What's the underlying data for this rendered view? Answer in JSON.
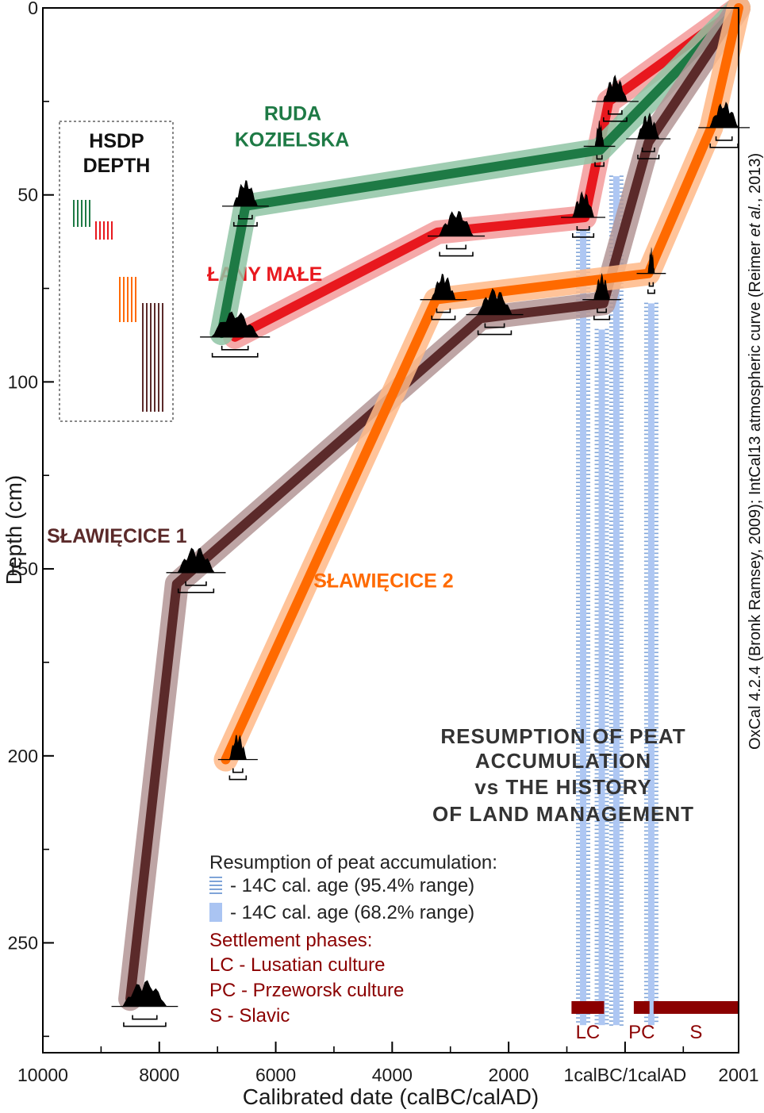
{
  "chart_data": {
    "type": "line",
    "xlabel": "Calibrated date (calBC/calAD)",
    "ylabel": "Depth (cm)",
    "x_ticks": [
      {
        "x": -8000,
        "label": "10000"
      },
      {
        "x": -6000,
        "label": "8000"
      },
      {
        "x": -4000,
        "label": "6000"
      },
      {
        "x": -2000,
        "label": "4000"
      },
      {
        "x": 0,
        "label": "2000"
      },
      {
        "x": 2000,
        "label": "1calBC/1calAD"
      },
      {
        "x": 3950,
        "label": "2001"
      }
    ],
    "y_ticks": [
      0,
      50,
      100,
      150,
      200,
      250
    ],
    "xlim": [
      -8000,
      3950
    ],
    "ylim": [
      0,
      279
    ],
    "side_note_parts": [
      "OxCal 4.2.4 (Bronk Ramsey, 2009); IntCal13 atmospheric curve (Reimer ",
      "et al.",
      ", 2013)"
    ],
    "hsdp": {
      "line1": "HSDP",
      "line2": "DEPTH"
    },
    "res_title": [
      "RESUMPTION OF PEAT",
      "ACCUMULATION",
      "vs THE HISTORY",
      "OF LAND MANAGEMENT"
    ],
    "legend": {
      "heading": "Resumption of peat accumulation:",
      "item95": "- 14C cal. age (95.4% range)",
      "item68": "- 14C cal. age (68.2% range)",
      "settlement_head": "Settlement phases:",
      "lc": "LC - Lusatian culture",
      "pc": "PC - Przeworsk culture",
      "s": "S - Slavic"
    },
    "phase_bars": [
      {
        "label": "LC",
        "start": 1080,
        "end": 1640
      },
      {
        "label": "PC",
        "start": 2150,
        "end": 2420
      },
      {
        "label": "S",
        "start": 2490,
        "end": 3950
      }
    ],
    "resumption_lines": [
      {
        "x": 1280,
        "y0": 59,
        "y1": 272
      },
      {
        "x": 1600,
        "y0": 86,
        "y1": 272
      },
      {
        "x": 1850,
        "y0": 45,
        "y1": 272
      },
      {
        "x": 2450,
        "y0": 79,
        "y1": 272
      }
    ],
    "series": [
      {
        "name": "ŁANY MAŁE",
        "color": "#e8181e",
        "light": "#f39a9a",
        "points": [
          [
            3950,
            0
          ],
          [
            1720,
            25
          ],
          [
            1310,
            56
          ],
          [
            -1220,
            60
          ],
          [
            -4700,
            88
          ]
        ],
        "label_at": [
          -5180,
          73
        ]
      },
      {
        "name": "RUDA KOZIELSKA",
        "color": "#1e7a45",
        "light": "#8fc4a4",
        "points": [
          [
            3950,
            0
          ],
          [
            1570,
            38
          ],
          [
            -4520,
            53
          ],
          [
            -4930,
            87
          ]
        ],
        "label_at": [
          -4200,
          36
        ]
      },
      {
        "name": "SŁAWIĘCICE 1",
        "color": "#5b2a2a",
        "light": "#b39595",
        "points": [
          [
            3950,
            0
          ],
          [
            2400,
            36
          ],
          [
            1630,
            79
          ],
          [
            -480,
            83
          ],
          [
            -5700,
            154
          ],
          [
            -6500,
            265
          ]
        ],
        "label_at": [
          -7930,
          143
        ]
      },
      {
        "name": "SŁAWIĘCICE 2",
        "color": "#ff6a00",
        "light": "#ffb887",
        "points": [
          [
            3950,
            0
          ],
          [
            3480,
            32
          ],
          [
            2400,
            71
          ],
          [
            -1250,
            78
          ],
          [
            -4860,
            201
          ]
        ],
        "label_at": [
          -3350,
          155
        ]
      }
    ],
    "dates": [
      {
        "x": 3700,
        "y": 32,
        "w": 500,
        "color": "#ff6a00"
      },
      {
        "x": 2450,
        "y": 71,
        "w": 120,
        "color": "#ff6a00"
      },
      {
        "x": -1120,
        "y": 78,
        "w": 420,
        "color": "#ff6a00"
      },
      {
        "x": -4650,
        "y": 201,
        "w": 300,
        "color": "#ff6a00"
      },
      {
        "x": 2400,
        "y": 35,
        "w": 380,
        "color": "#5b2a2a"
      },
      {
        "x": 1600,
        "y": 78,
        "w": 280,
        "color": "#5b2a2a"
      },
      {
        "x": -240,
        "y": 82,
        "w": 600,
        "color": "#5b2a2a"
      },
      {
        "x": -5370,
        "y": 151,
        "w": 640,
        "color": "#5b2a2a"
      },
      {
        "x": -6250,
        "y": 267,
        "w": 760,
        "color": "#5b2a2a"
      },
      {
        "x": 1830,
        "y": 25,
        "w": 420,
        "color": "#e8181e"
      },
      {
        "x": 1280,
        "y": 56,
        "w": 380,
        "color": "#e8181e"
      },
      {
        "x": -900,
        "y": 61,
        "w": 600,
        "color": "#e8181e"
      },
      {
        "x": -4520,
        "y": 53,
        "w": 420,
        "color": "#1e7a45"
      },
      {
        "x": 1560,
        "y": 37,
        "w": 160,
        "color": "#1e7a45"
      },
      {
        "x": -4700,
        "y": 88,
        "w": 820,
        "color": "#e8181e"
      }
    ],
    "hsdp_bars": [
      {
        "x0": 93,
        "y0": 252,
        "y1": 286,
        "n": 5,
        "gap": 5,
        "color": "#1e7a45"
      },
      {
        "x0": 121,
        "y0": 279,
        "y1": 302,
        "n": 5,
        "gap": 5,
        "color": "#e8181e"
      },
      {
        "x0": 151,
        "y0": 349,
        "y1": 406,
        "n": 5,
        "gap": 5,
        "color": "#ff6a00"
      },
      {
        "x0": 180,
        "y0": 382,
        "y1": 519,
        "n": 6,
        "gap": 5,
        "color": "#5b2a2a"
      }
    ]
  }
}
